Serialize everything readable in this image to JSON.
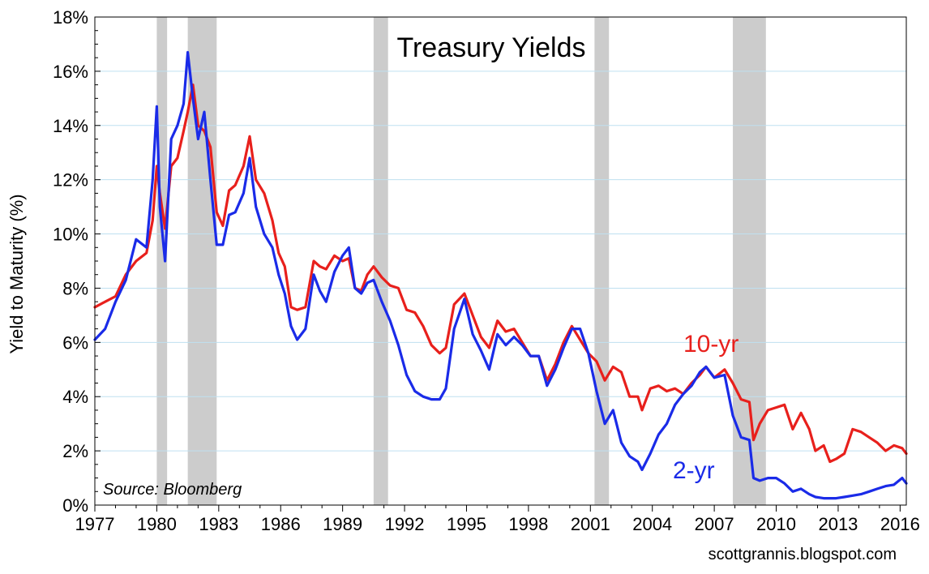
{
  "chart_data": {
    "type": "line",
    "title": "Treasury Yields",
    "xlabel": "",
    "ylabel": "Yield to Maturity (%)",
    "xlim": [
      1977,
      2016.3
    ],
    "ylim": [
      0,
      18
    ],
    "x_ticks": [
      1977,
      1980,
      1983,
      1986,
      1989,
      1992,
      1995,
      1998,
      2001,
      2004,
      2007,
      2010,
      2013,
      2016
    ],
    "x_tick_labels": [
      "1977",
      "1980",
      "1983",
      "1986",
      "1989",
      "1992",
      "1995",
      "1998",
      "2001",
      "2004",
      "2007",
      "2010",
      "2013",
      "2016"
    ],
    "y_ticks": [
      0,
      2,
      4,
      6,
      8,
      10,
      12,
      14,
      16,
      18
    ],
    "y_tick_labels": [
      "0%",
      "2%",
      "4%",
      "6%",
      "8%",
      "10%",
      "12%",
      "14%",
      "16%",
      "18%"
    ],
    "grid": true,
    "recessions": [
      [
        1980.0,
        1980.5
      ],
      [
        1981.5,
        1982.9
      ],
      [
        1990.5,
        1991.2
      ],
      [
        2001.2,
        2001.9
      ],
      [
        2007.9,
        2009.5
      ]
    ],
    "series": [
      {
        "name": "10-yr",
        "color": "#e8201c",
        "x": [
          1977.0,
          1977.5,
          1978.0,
          1978.5,
          1979.0,
          1979.5,
          1979.8,
          1980.0,
          1980.15,
          1980.4,
          1980.7,
          1981.0,
          1981.3,
          1981.5,
          1981.75,
          1982.0,
          1982.3,
          1982.6,
          1982.9,
          1983.2,
          1983.5,
          1983.8,
          1984.2,
          1984.5,
          1984.8,
          1985.2,
          1985.6,
          1985.9,
          1986.2,
          1986.5,
          1986.8,
          1987.2,
          1987.6,
          1987.9,
          1988.2,
          1988.6,
          1989.0,
          1989.3,
          1989.6,
          1989.9,
          1990.2,
          1990.5,
          1990.9,
          1991.3,
          1991.7,
          1992.1,
          1992.5,
          1992.9,
          1993.3,
          1993.7,
          1994.0,
          1994.4,
          1994.9,
          1995.3,
          1995.7,
          1996.1,
          1996.5,
          1996.9,
          1997.3,
          1997.7,
          1998.1,
          1998.5,
          1998.9,
          1999.3,
          1999.7,
          2000.1,
          2000.5,
          2000.9,
          2001.3,
          2001.7,
          2002.1,
          2002.5,
          2002.9,
          2003.3,
          2003.5,
          2003.9,
          2004.3,
          2004.7,
          2005.1,
          2005.5,
          2005.9,
          2006.3,
          2006.6,
          2007.0,
          2007.5,
          2007.9,
          2008.3,
          2008.7,
          2008.9,
          2009.2,
          2009.6,
          2010.0,
          2010.4,
          2010.8,
          2011.2,
          2011.6,
          2011.9,
          2012.3,
          2012.6,
          2012.9,
          2013.3,
          2013.7,
          2014.1,
          2014.5,
          2014.9,
          2015.3,
          2015.7,
          2016.1,
          2016.3
        ],
        "y": [
          7.3,
          7.5,
          7.7,
          8.5,
          9.0,
          9.3,
          10.5,
          12.5,
          11.5,
          10.2,
          12.5,
          12.8,
          13.8,
          14.5,
          15.5,
          14.0,
          13.8,
          13.2,
          10.8,
          10.3,
          11.6,
          11.8,
          12.5,
          13.6,
          12.0,
          11.5,
          10.5,
          9.3,
          8.8,
          7.3,
          7.2,
          7.3,
          9.0,
          8.8,
          8.7,
          9.2,
          9.0,
          9.1,
          8.0,
          7.9,
          8.5,
          8.8,
          8.4,
          8.1,
          8.0,
          7.2,
          7.1,
          6.6,
          5.9,
          5.6,
          5.8,
          7.4,
          7.8,
          7.0,
          6.2,
          5.8,
          6.8,
          6.4,
          6.5,
          6.0,
          5.5,
          5.5,
          4.6,
          5.2,
          6.0,
          6.6,
          6.1,
          5.6,
          5.3,
          4.6,
          5.1,
          4.9,
          4.0,
          4.0,
          3.5,
          4.3,
          4.4,
          4.2,
          4.3,
          4.1,
          4.5,
          4.8,
          5.1,
          4.7,
          5.0,
          4.5,
          3.9,
          3.8,
          2.4,
          3.0,
          3.5,
          3.6,
          3.7,
          2.8,
          3.4,
          2.8,
          2.0,
          2.2,
          1.6,
          1.7,
          1.9,
          2.8,
          2.7,
          2.5,
          2.3,
          2.0,
          2.2,
          2.1,
          1.9
        ]
      },
      {
        "name": "2-yr",
        "color": "#1a2be8",
        "x": [
          1977.0,
          1977.5,
          1978.0,
          1978.5,
          1979.0,
          1979.5,
          1979.8,
          1980.0,
          1980.15,
          1980.4,
          1980.7,
          1981.0,
          1981.3,
          1981.5,
          1981.75,
          1982.0,
          1982.3,
          1982.6,
          1982.9,
          1983.2,
          1983.5,
          1983.8,
          1984.2,
          1984.5,
          1984.8,
          1985.2,
          1985.6,
          1985.9,
          1986.2,
          1986.5,
          1986.8,
          1987.2,
          1987.6,
          1987.9,
          1988.2,
          1988.6,
          1989.0,
          1989.3,
          1989.6,
          1989.9,
          1990.2,
          1990.5,
          1990.9,
          1991.3,
          1991.7,
          1992.1,
          1992.5,
          1992.9,
          1993.3,
          1993.7,
          1994.0,
          1994.4,
          1994.9,
          1995.3,
          1995.7,
          1996.1,
          1996.5,
          1996.9,
          1997.3,
          1997.7,
          1998.1,
          1998.5,
          1998.9,
          1999.3,
          1999.7,
          2000.1,
          2000.5,
          2000.9,
          2001.3,
          2001.7,
          2002.1,
          2002.5,
          2002.9,
          2003.3,
          2003.5,
          2003.9,
          2004.3,
          2004.7,
          2005.1,
          2005.5,
          2005.9,
          2006.3,
          2006.6,
          2007.0,
          2007.5,
          2007.9,
          2008.3,
          2008.7,
          2008.9,
          2009.2,
          2009.6,
          2010.0,
          2010.4,
          2010.8,
          2011.2,
          2011.6,
          2011.9,
          2012.3,
          2012.6,
          2012.9,
          2013.3,
          2013.7,
          2014.1,
          2014.5,
          2014.9,
          2015.3,
          2015.7,
          2016.1,
          2016.3
        ],
        "y": [
          6.1,
          6.5,
          7.5,
          8.3,
          9.8,
          9.5,
          12.0,
          14.7,
          11.0,
          9.0,
          13.5,
          14.0,
          14.8,
          16.7,
          15.0,
          13.5,
          14.5,
          12.0,
          9.6,
          9.6,
          10.7,
          10.8,
          11.5,
          12.8,
          11.0,
          10.0,
          9.5,
          8.5,
          7.8,
          6.6,
          6.1,
          6.5,
          8.5,
          7.9,
          7.5,
          8.6,
          9.2,
          9.5,
          8.0,
          7.8,
          8.2,
          8.3,
          7.5,
          6.8,
          5.9,
          4.8,
          4.2,
          4.0,
          3.9,
          3.9,
          4.3,
          6.5,
          7.6,
          6.3,
          5.7,
          5.0,
          6.3,
          5.9,
          6.2,
          5.9,
          5.5,
          5.5,
          4.4,
          5.0,
          5.8,
          6.5,
          6.5,
          5.6,
          4.2,
          3.0,
          3.5,
          2.3,
          1.8,
          1.6,
          1.3,
          1.9,
          2.6,
          3.0,
          3.7,
          4.1,
          4.4,
          4.9,
          5.1,
          4.7,
          4.8,
          3.3,
          2.5,
          2.4,
          1.0,
          0.9,
          1.0,
          1.0,
          0.8,
          0.5,
          0.6,
          0.4,
          0.3,
          0.25,
          0.25,
          0.25,
          0.3,
          0.35,
          0.4,
          0.5,
          0.6,
          0.7,
          0.75,
          1.0,
          0.8
        ]
      }
    ]
  },
  "annotations": {
    "series_label_10yr": "10-yr",
    "series_label_2yr": "2-yr",
    "source": "Source: Bloomberg",
    "site": "scottgrannis.blogspot.com"
  }
}
